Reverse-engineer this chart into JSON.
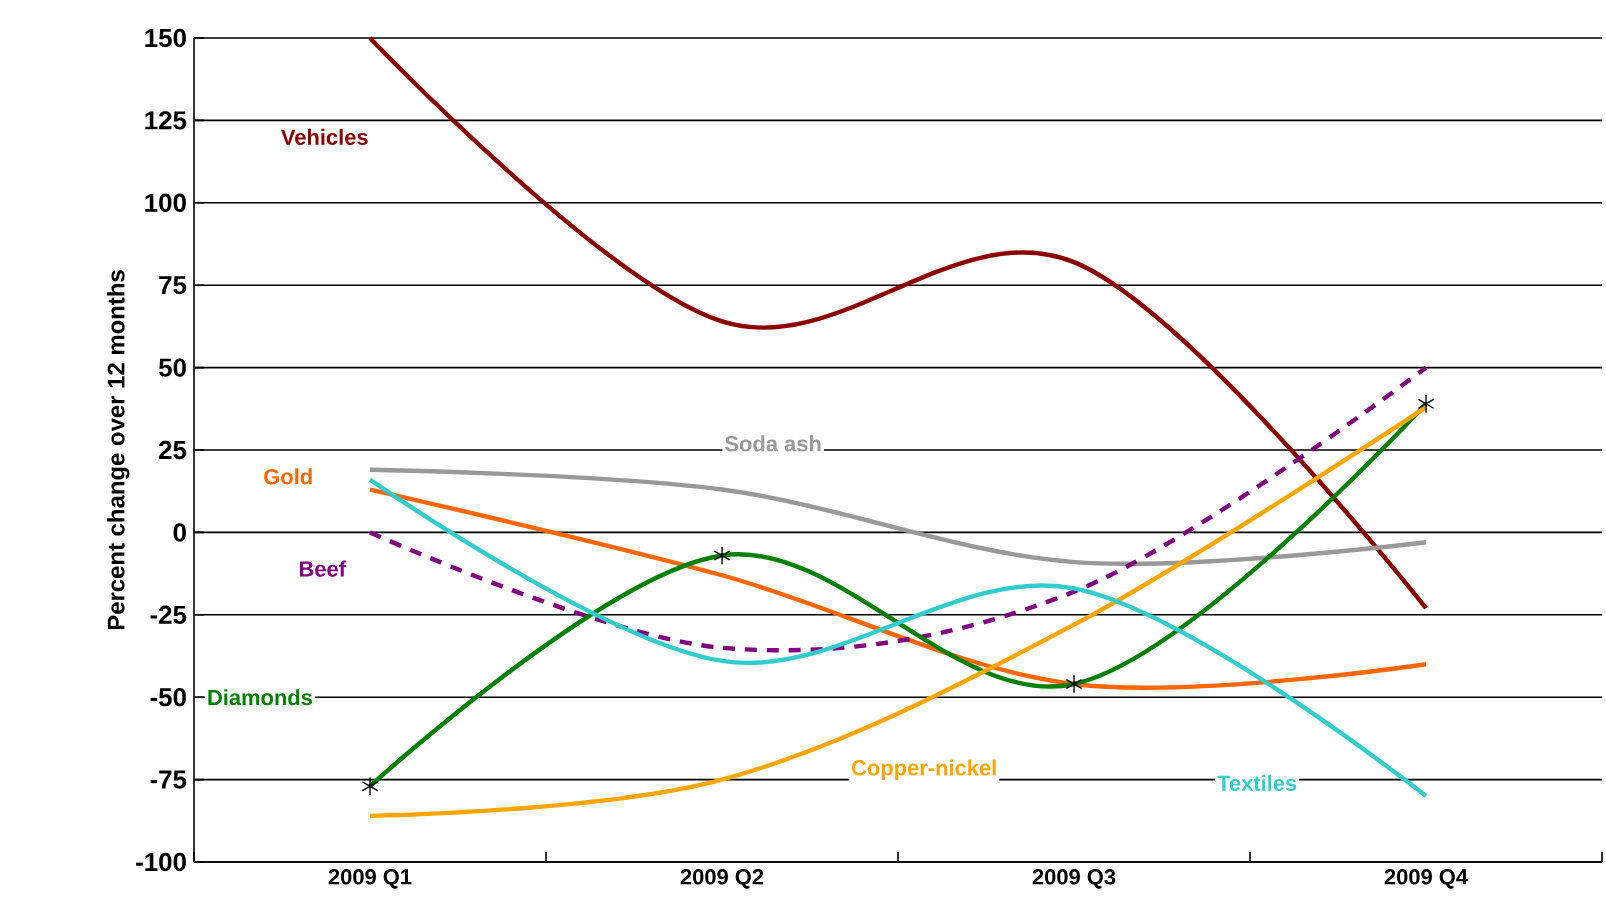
{
  "chart_data": {
    "type": "line",
    "ylabel": "Percent change over 12 months",
    "categories": [
      "2009 Q1",
      "2009 Q2",
      "2009 Q3",
      "2009 Q4"
    ],
    "series": [
      {
        "name": "Vehicles",
        "color": "#8b0000",
        "values": [
          150,
          64,
          82,
          -23
        ]
      },
      {
        "name": "Soda ash",
        "color": "#999999",
        "values": [
          19,
          13,
          -9,
          -3
        ]
      },
      {
        "name": "Gold",
        "color": "#ff6600",
        "values": [
          13,
          -13,
          -46,
          -40
        ]
      },
      {
        "name": "Beef",
        "color": "#800080",
        "line_style": "dashed",
        "values": [
          0,
          -35,
          -18,
          50
        ]
      },
      {
        "name": "Diamonds",
        "color": "#008000",
        "marker": "cross",
        "values": [
          -77,
          -7,
          -46,
          39
        ]
      },
      {
        "name": "Copper-nickel",
        "color": "#ffa500",
        "values": [
          -86,
          -75,
          -28,
          38
        ]
      },
      {
        "name": "Textiles",
        "color": "#33cccc",
        "values": [
          16,
          -39,
          -17,
          -80
        ]
      }
    ],
    "ylim": [
      -100,
      150
    ],
    "yticks": [
      -100,
      -75,
      -50,
      -25,
      0,
      25,
      50,
      75,
      100,
      125,
      150
    ],
    "grid": "y",
    "legend": false,
    "marker": "none",
    "line_style": "solid"
  }
}
